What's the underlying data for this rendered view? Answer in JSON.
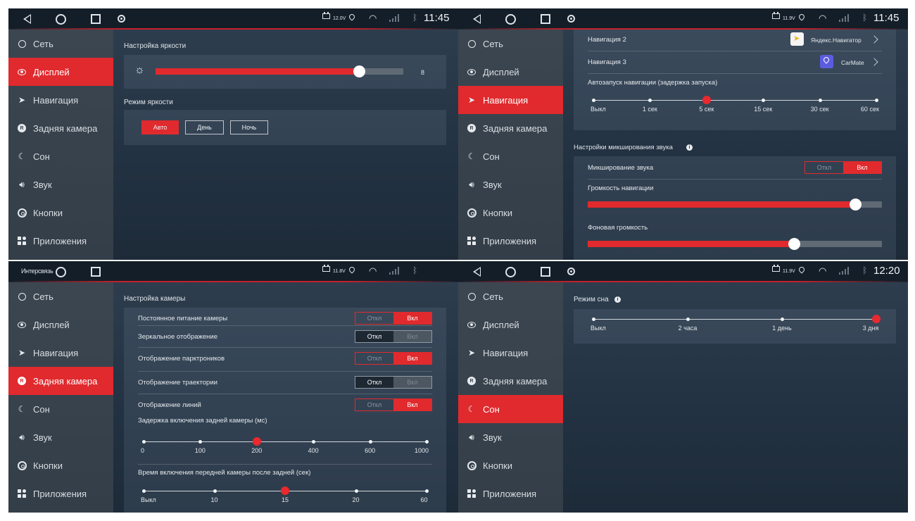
{
  "status": {
    "clock_p1": "11:45",
    "clock_p2": "11:45",
    "clock_p4": "12:20",
    "volt_p1": "12.0V",
    "volt_p2": "11.9V",
    "volt_p3": "11.8V",
    "volt_p4": "11.9V",
    "ticker_p3": "Интерсвязь"
  },
  "sidebar": {
    "items": [
      {
        "label": "Сеть",
        "icon": "globe-icon"
      },
      {
        "label": "Дисплей",
        "icon": "eye-icon"
      },
      {
        "label": "Навигация",
        "icon": "navigation-arrow-icon"
      },
      {
        "label": "Задняя камера",
        "icon": "rear-camera-icon"
      },
      {
        "label": "Сон",
        "icon": "moon-icon"
      },
      {
        "label": "Звук",
        "icon": "speaker-icon"
      },
      {
        "label": "Кнопки",
        "icon": "steering-wheel-icon"
      },
      {
        "label": "Приложения",
        "icon": "apps-icon"
      }
    ]
  },
  "display_panel": {
    "brightness_title": "Настройка яркости",
    "brightness_value": "8",
    "brightness_fraction": 0.82,
    "mode_title": "Режим яркости",
    "mode_buttons": [
      "Авто",
      "День",
      "Ночь"
    ],
    "mode_selected": "Авто"
  },
  "navigation_panel": {
    "nav2_label": "Навигация 2",
    "nav2_app": "Яндекс.Навигатор",
    "nav3_label": "Навигация 3",
    "nav3_app": "CarMate",
    "autostart_title": "Автозапуск навигации (задержка запуска)",
    "autostart_steps": [
      "Выкл",
      "1 сек",
      "5 сек",
      "15 сек",
      "30 сек",
      "60 сек"
    ],
    "autostart_selected_index": 2,
    "mix_title": "Настройки микширования звука",
    "mix_label": "Микширование звука",
    "mix_off": "Откл",
    "mix_on": "Вкл",
    "nav_volume_label": "Громкость навигации",
    "nav_volume_fraction": 0.91,
    "bg_volume_label": "Фоновая громкость",
    "bg_volume_fraction": 0.7
  },
  "camera_panel": {
    "title": "Настройка камеры",
    "rows": [
      {
        "label": "Постоянное питание камеры",
        "state": "on"
      },
      {
        "label": "Зеркальное отображение",
        "state": "off"
      },
      {
        "label": "Отображение парктроников",
        "state": "on"
      },
      {
        "label": "Отображение траектории",
        "state": "off"
      },
      {
        "label": "Отображение линий",
        "state": "on"
      }
    ],
    "toggle_off": "Откл",
    "toggle_on": "Вкл",
    "delay_title": "Задержка включения задней камеры (мс)",
    "delay_steps": [
      "0",
      "100",
      "200",
      "400",
      "600",
      "1000"
    ],
    "delay_selected_index": 2,
    "front_title": "Время включения передней камеры после задней (сек)",
    "front_steps": [
      "Выкл",
      "10",
      "15",
      "20",
      "60"
    ],
    "front_selected_index": 2
  },
  "sleep_panel": {
    "title": "Режим сна",
    "steps": [
      "Выкл",
      "2 часа",
      "1 день",
      "3 дня"
    ],
    "selected_index": 3
  },
  "colors": {
    "accent": "#e02a2e",
    "sidebar_bg": "#3a444e",
    "main_bg": "#253545"
  }
}
